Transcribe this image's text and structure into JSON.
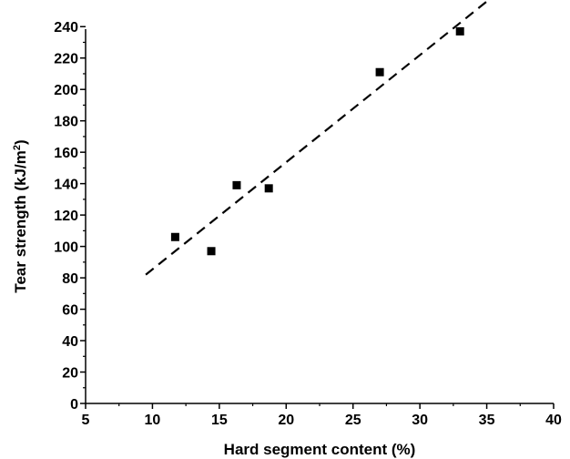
{
  "chart_data": {
    "type": "scatter",
    "xlabel": "Hard segment content (%)",
    "ylabel_main": "Tear strength (kJ/m",
    "ylabel_sup": "2",
    "ylabel_close": ")",
    "xlim": [
      5,
      40
    ],
    "ylim": [
      0,
      250
    ],
    "x_ticks": [
      5,
      10,
      15,
      20,
      25,
      30,
      35,
      40
    ],
    "x_tick_labels": [
      "5",
      "10",
      "15",
      "20",
      "25",
      "30",
      "35",
      "40"
    ],
    "y_ticks": [
      0,
      20,
      40,
      60,
      80,
      100,
      120,
      140,
      160,
      180,
      200,
      220,
      240
    ],
    "y_tick_labels": [
      "0",
      "20",
      "40",
      "60",
      "80",
      "100",
      "120",
      "140",
      "160",
      "180",
      "200",
      "220",
      "240"
    ],
    "grid": false,
    "series": [
      {
        "marker": "square",
        "color": "#000000",
        "x": [
          11.7,
          14.4,
          16.3,
          18.7,
          27.0,
          33.0
        ],
        "y": [
          106,
          97,
          139,
          137,
          211,
          237
        ]
      }
    ],
    "fit_line": {
      "style": "dashed",
      "color": "#000000",
      "x": [
        9.5,
        35.0
      ],
      "y": [
        82,
        256
      ]
    }
  }
}
